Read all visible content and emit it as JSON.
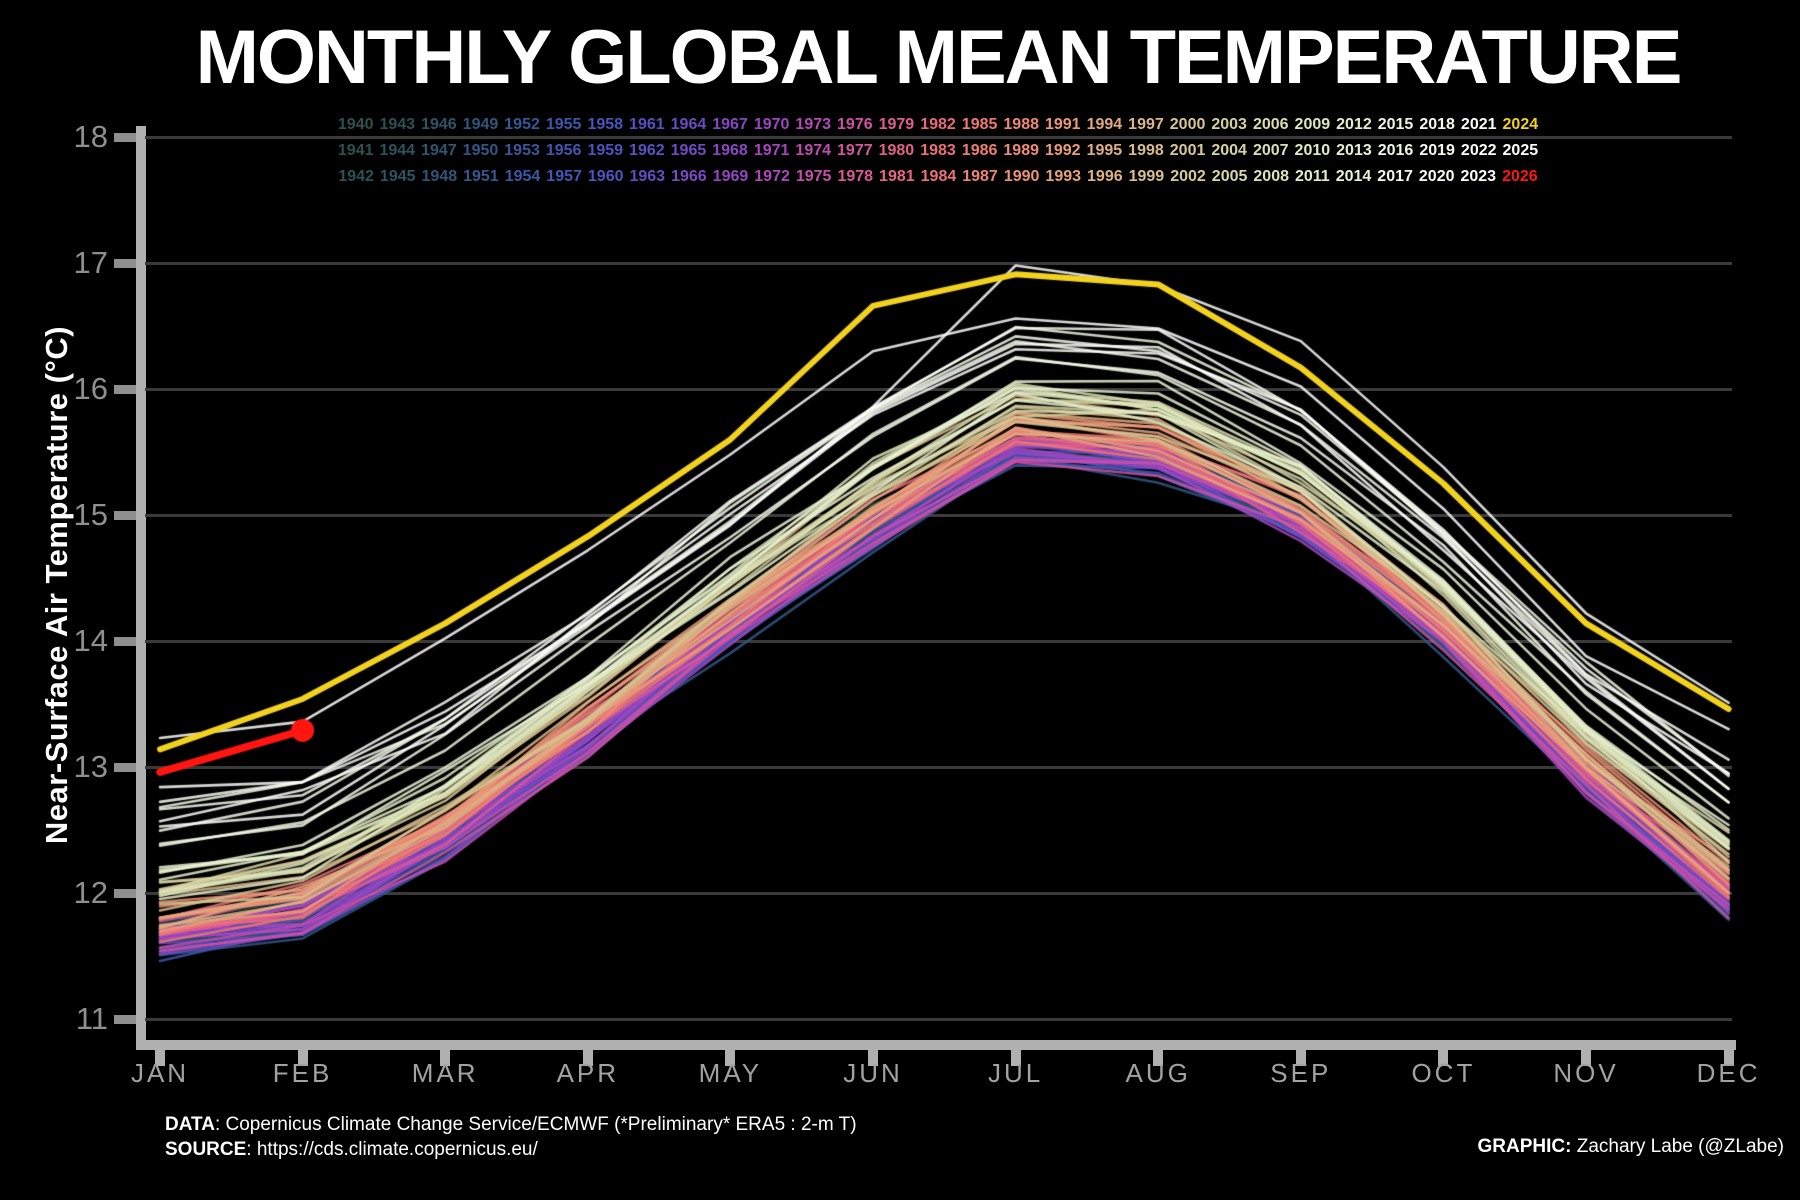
{
  "title": "MONTHLY GLOBAL MEAN TEMPERATURE",
  "y_axis": {
    "label": "Near-Surface Air Temperature (°C)",
    "ticks": [
      18,
      17,
      16,
      15,
      14,
      13,
      12,
      11
    ]
  },
  "x_axis": {
    "months": [
      "JAN",
      "FEB",
      "MAR",
      "APR",
      "MAY",
      "JUN",
      "JUL",
      "AUG",
      "SEP",
      "OCT",
      "NOV",
      "DEC"
    ]
  },
  "legend": {
    "rows": [
      [
        1940,
        1943,
        1946,
        1949,
        1952,
        1955,
        1958,
        1961,
        1964,
        1967,
        1970,
        1973,
        1976,
        1979,
        1982,
        1985,
        1988,
        1991,
        1994,
        1997,
        2000,
        2003,
        2006,
        2009,
        2012,
        2015,
        2018,
        2021,
        2024
      ],
      [
        1941,
        1944,
        1947,
        1950,
        1953,
        1956,
        1959,
        1962,
        1965,
        1968,
        1971,
        1974,
        1977,
        1980,
        1983,
        1986,
        1989,
        1992,
        1995,
        1998,
        2001,
        2004,
        2007,
        2010,
        2013,
        2016,
        2019,
        2022,
        2025
      ],
      [
        1942,
        1945,
        1948,
        1951,
        1954,
        1957,
        1960,
        1963,
        1966,
        1969,
        1972,
        1975,
        1978,
        1981,
        1984,
        1987,
        1990,
        1993,
        1996,
        1999,
        2002,
        2005,
        2008,
        2011,
        2014,
        2017,
        2020,
        2023,
        2026
      ]
    ]
  },
  "footer": {
    "data_label": "DATA",
    "data_rest": ": Copernicus Climate Change Service/ECMWF (*Preliminary* ERA5 : 2-m T)",
    "source_label": "SOURCE",
    "source_rest": ": https://cds.climate.copernicus.eu/",
    "graphic_label": "GRAPHIC:",
    "graphic_rest": " Zachary Labe (@ZLabe)"
  },
  "chart_data": {
    "type": "line",
    "categories": [
      "JAN",
      "FEB",
      "MAR",
      "APR",
      "MAY",
      "JUN",
      "JUL",
      "AUG",
      "SEP",
      "OCT",
      "NOV",
      "DEC"
    ],
    "title": "MONTHLY GLOBAL MEAN TEMPERATURE",
    "xlabel": "",
    "ylabel": "Near-Surface Air Temperature (°C)",
    "ylim": [
      10.75,
      18
    ],
    "yticks": [
      11,
      12,
      13,
      14,
      15,
      16,
      17,
      18
    ],
    "grid": "horizontal",
    "legend_position": "top",
    "background": "#000000",
    "gridline_color": "#3a3a3a",
    "axis_color": "#b0b0b0",
    "tick_label_color": "#8f8f8f",
    "base_seasonal": [
      11.52,
      11.7,
      12.3,
      13.12,
      13.98,
      14.78,
      15.44,
      15.34,
      14.82,
      13.94,
      12.8,
      11.84
    ],
    "spread_seasonal": [
      1.62,
      1.64,
      1.62,
      1.58,
      1.55,
      1.6,
      1.5,
      1.52,
      1.48,
      1.4,
      1.45,
      1.64
    ],
    "noise_amp": 0.17,
    "year_offsets": {
      "1940": 0.14,
      "1941": 0.12,
      "1942": 0.09,
      "1943": 0.08,
      "1944": 0.12,
      "1945": 0.07,
      "1946": 0.05,
      "1947": 0.04,
      "1948": 0.04,
      "1949": 0.03,
      "1950": 0.0,
      "1951": 0.05,
      "1952": 0.07,
      "1953": 0.1,
      "1954": 0.02,
      "1955": 0.01,
      "1956": 0.0,
      "1957": 0.09,
      "1958": 0.11,
      "1959": 0.09,
      "1960": 0.07,
      "1961": 0.09,
      "1962": 0.07,
      "1963": 0.09,
      "1964": 0.02,
      "1965": 0.03,
      "1966": 0.05,
      "1967": 0.06,
      "1968": 0.04,
      "1969": 0.1,
      "1970": 0.08,
      "1971": 0.03,
      "1972": 0.07,
      "1973": 0.13,
      "1974": 0.02,
      "1975": 0.05,
      "1976": 0.01,
      "1977": 0.13,
      "1978": 0.08,
      "1979": 0.12,
      "1980": 0.16,
      "1981": 0.17,
      "1982": 0.11,
      "1983": 0.18,
      "1984": 0.11,
      "1985": 0.1,
      "1986": 0.12,
      "1987": 0.17,
      "1988": 0.2,
      "1989": 0.15,
      "1990": 0.21,
      "1991": 0.2,
      "1992": 0.12,
      "1993": 0.13,
      "1994": 0.17,
      "1995": 0.22,
      "1996": 0.18,
      "1997": 0.26,
      "1998": 0.33,
      "1999": 0.21,
      "2000": 0.21,
      "2001": 0.28,
      "2002": 0.31,
      "2003": 0.32,
      "2004": 0.29,
      "2005": 0.35,
      "2006": 0.32,
      "2007": 0.35,
      "2008": 0.28,
      "2009": 0.35,
      "2010": 0.39,
      "2011": 0.3,
      "2012": 0.35,
      "2013": 0.38,
      "2014": 0.42,
      "2015": 0.55,
      "2016": 0.68,
      "2017": 0.62,
      "2018": 0.56,
      "2019": 0.66,
      "2020": 0.7,
      "2021": 0.6,
      "2022": 0.64,
      "2023": 0.86,
      "2024": 0.97,
      "2025": 0.94,
      "2026": 0.88
    },
    "series_exact": {
      "2023": [
        12.84,
        12.88,
        13.44,
        14.14,
        14.92,
        15.86,
        16.98,
        16.82,
        16.38,
        15.38,
        14.22,
        13.51
      ],
      "2024": [
        13.14,
        13.54,
        14.14,
        14.83,
        15.6,
        16.66,
        16.91,
        16.83,
        16.17,
        15.25,
        14.14,
        13.46
      ],
      "2025": [
        13.23,
        13.36,
        14.02,
        14.72,
        15.48,
        16.3,
        16.56,
        16.48,
        16.02,
        15.05,
        13.88,
        13.3
      ],
      "2026": [
        12.96,
        13.29
      ]
    },
    "color_stops": [
      [
        1940,
        "#30504b"
      ],
      [
        1943,
        "#2b5157"
      ],
      [
        1946,
        "#2c5668"
      ],
      [
        1949,
        "#31567e"
      ],
      [
        1952,
        "#375795"
      ],
      [
        1955,
        "#3f57ab"
      ],
      [
        1958,
        "#4755bd"
      ],
      [
        1961,
        "#5450c2"
      ],
      [
        1964,
        "#6a4cc1"
      ],
      [
        1967,
        "#8347c3"
      ],
      [
        1970,
        "#9c45c1"
      ],
      [
        1973,
        "#b748b6"
      ],
      [
        1976,
        "#cd52a4"
      ],
      [
        1979,
        "#df5d8f"
      ],
      [
        1982,
        "#e96a7d"
      ],
      [
        1985,
        "#ee7970"
      ],
      [
        1988,
        "#ef8873"
      ],
      [
        1991,
        "#ea9878"
      ],
      [
        1994,
        "#e3a87e"
      ],
      [
        1997,
        "#dcb787"
      ],
      [
        2000,
        "#d6c492"
      ],
      [
        2003,
        "#d4cf9e"
      ],
      [
        2006,
        "#d8dcae"
      ],
      [
        2009,
        "#dde6bd"
      ],
      [
        2012,
        "#e4eecd"
      ],
      [
        2015,
        "#ecf4dc"
      ],
      [
        2018,
        "#f5f9ec"
      ],
      [
        2021,
        "#fcfdf8"
      ],
      [
        2026,
        "#ffffff"
      ]
    ],
    "special_colors": {
      "2024": "#f2d21f",
      "2026": "#ff1610"
    },
    "highlight": {
      "2024": "thick yellow line",
      "2026": "thick red line, Jan–Feb only, round marker at Feb"
    }
  }
}
